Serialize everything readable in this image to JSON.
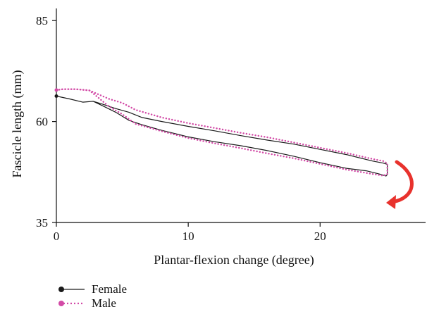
{
  "chart_data": {
    "type": "line",
    "xlabel": "Plantar-flexion change (degree)",
    "ylabel": "Fascicle length (mm)",
    "xlim": [
      0,
      28
    ],
    "ylim": [
      35,
      88
    ],
    "xticks": [
      0,
      10,
      20
    ],
    "yticks": [
      35,
      60,
      85
    ],
    "grid": false,
    "legend_position": "bottom-left",
    "series": [
      {
        "name": "Female",
        "color": "#1a1a1a",
        "style": "solid",
        "upper": {
          "x": [
            0,
            1,
            2,
            2.8,
            3.5,
            4.5,
            5.5,
            6.5,
            8,
            10,
            12,
            14,
            16,
            18,
            20,
            22,
            24,
            24.8,
            25.1
          ],
          "y": [
            66.3,
            65.6,
            64.8,
            65.0,
            64.3,
            63.2,
            62.3,
            61.0,
            60.0,
            58.8,
            57.7,
            56.5,
            55.4,
            54.4,
            53.1,
            51.8,
            50.2,
            49.7,
            49.4
          ]
        },
        "lower": {
          "x": [
            0,
            1,
            2,
            2.8,
            3.5,
            4.5,
            5.5,
            6.5,
            8,
            10,
            12,
            14,
            16,
            18,
            20,
            22,
            23.5,
            24.5,
            25,
            25.1
          ],
          "y": [
            66.3,
            65.6,
            64.8,
            65.0,
            63.9,
            62.3,
            60.3,
            59.2,
            57.8,
            56.2,
            55.0,
            54.0,
            52.8,
            51.4,
            49.8,
            48.4,
            47.8,
            47.0,
            46.5,
            46.9
          ]
        }
      },
      {
        "name": "Male",
        "color": "#d24aa6",
        "style": "dotted",
        "upper": {
          "x": [
            0,
            0.5,
            1.5,
            2.5,
            3,
            4,
            5,
            6,
            8,
            10,
            12,
            14,
            16,
            18,
            20,
            22,
            24,
            24.8,
            25.1
          ],
          "y": [
            67.8,
            68.0,
            68.0,
            67.7,
            67.0,
            65.6,
            64.6,
            62.9,
            61.0,
            59.6,
            58.4,
            57.2,
            56.1,
            54.8,
            53.5,
            52.2,
            50.7,
            50.2,
            49.6
          ]
        },
        "lower": {
          "x": [
            0,
            0.5,
            1.5,
            2.5,
            3,
            4,
            5,
            6,
            8,
            10,
            12,
            14,
            16,
            18,
            20,
            22,
            24,
            24.8,
            25.1
          ],
          "y": [
            67.8,
            68.0,
            68.0,
            67.7,
            66.4,
            63.7,
            61.8,
            59.4,
            57.6,
            55.9,
            54.6,
            53.4,
            52.1,
            50.9,
            49.5,
            48.1,
            47.0,
            46.6,
            47.0
          ]
        }
      }
    ]
  },
  "annotations": {
    "arrow": {
      "color": "#e8322d",
      "meaning": "loop direction (clockwise)"
    }
  },
  "legend": [
    {
      "name": "Female",
      "color": "#1a1a1a",
      "marker": "filled-dot",
      "line": "solid"
    },
    {
      "name": "Male",
      "color": "#d24aa6",
      "marker": "filled-dot",
      "line": "dotted"
    }
  ]
}
